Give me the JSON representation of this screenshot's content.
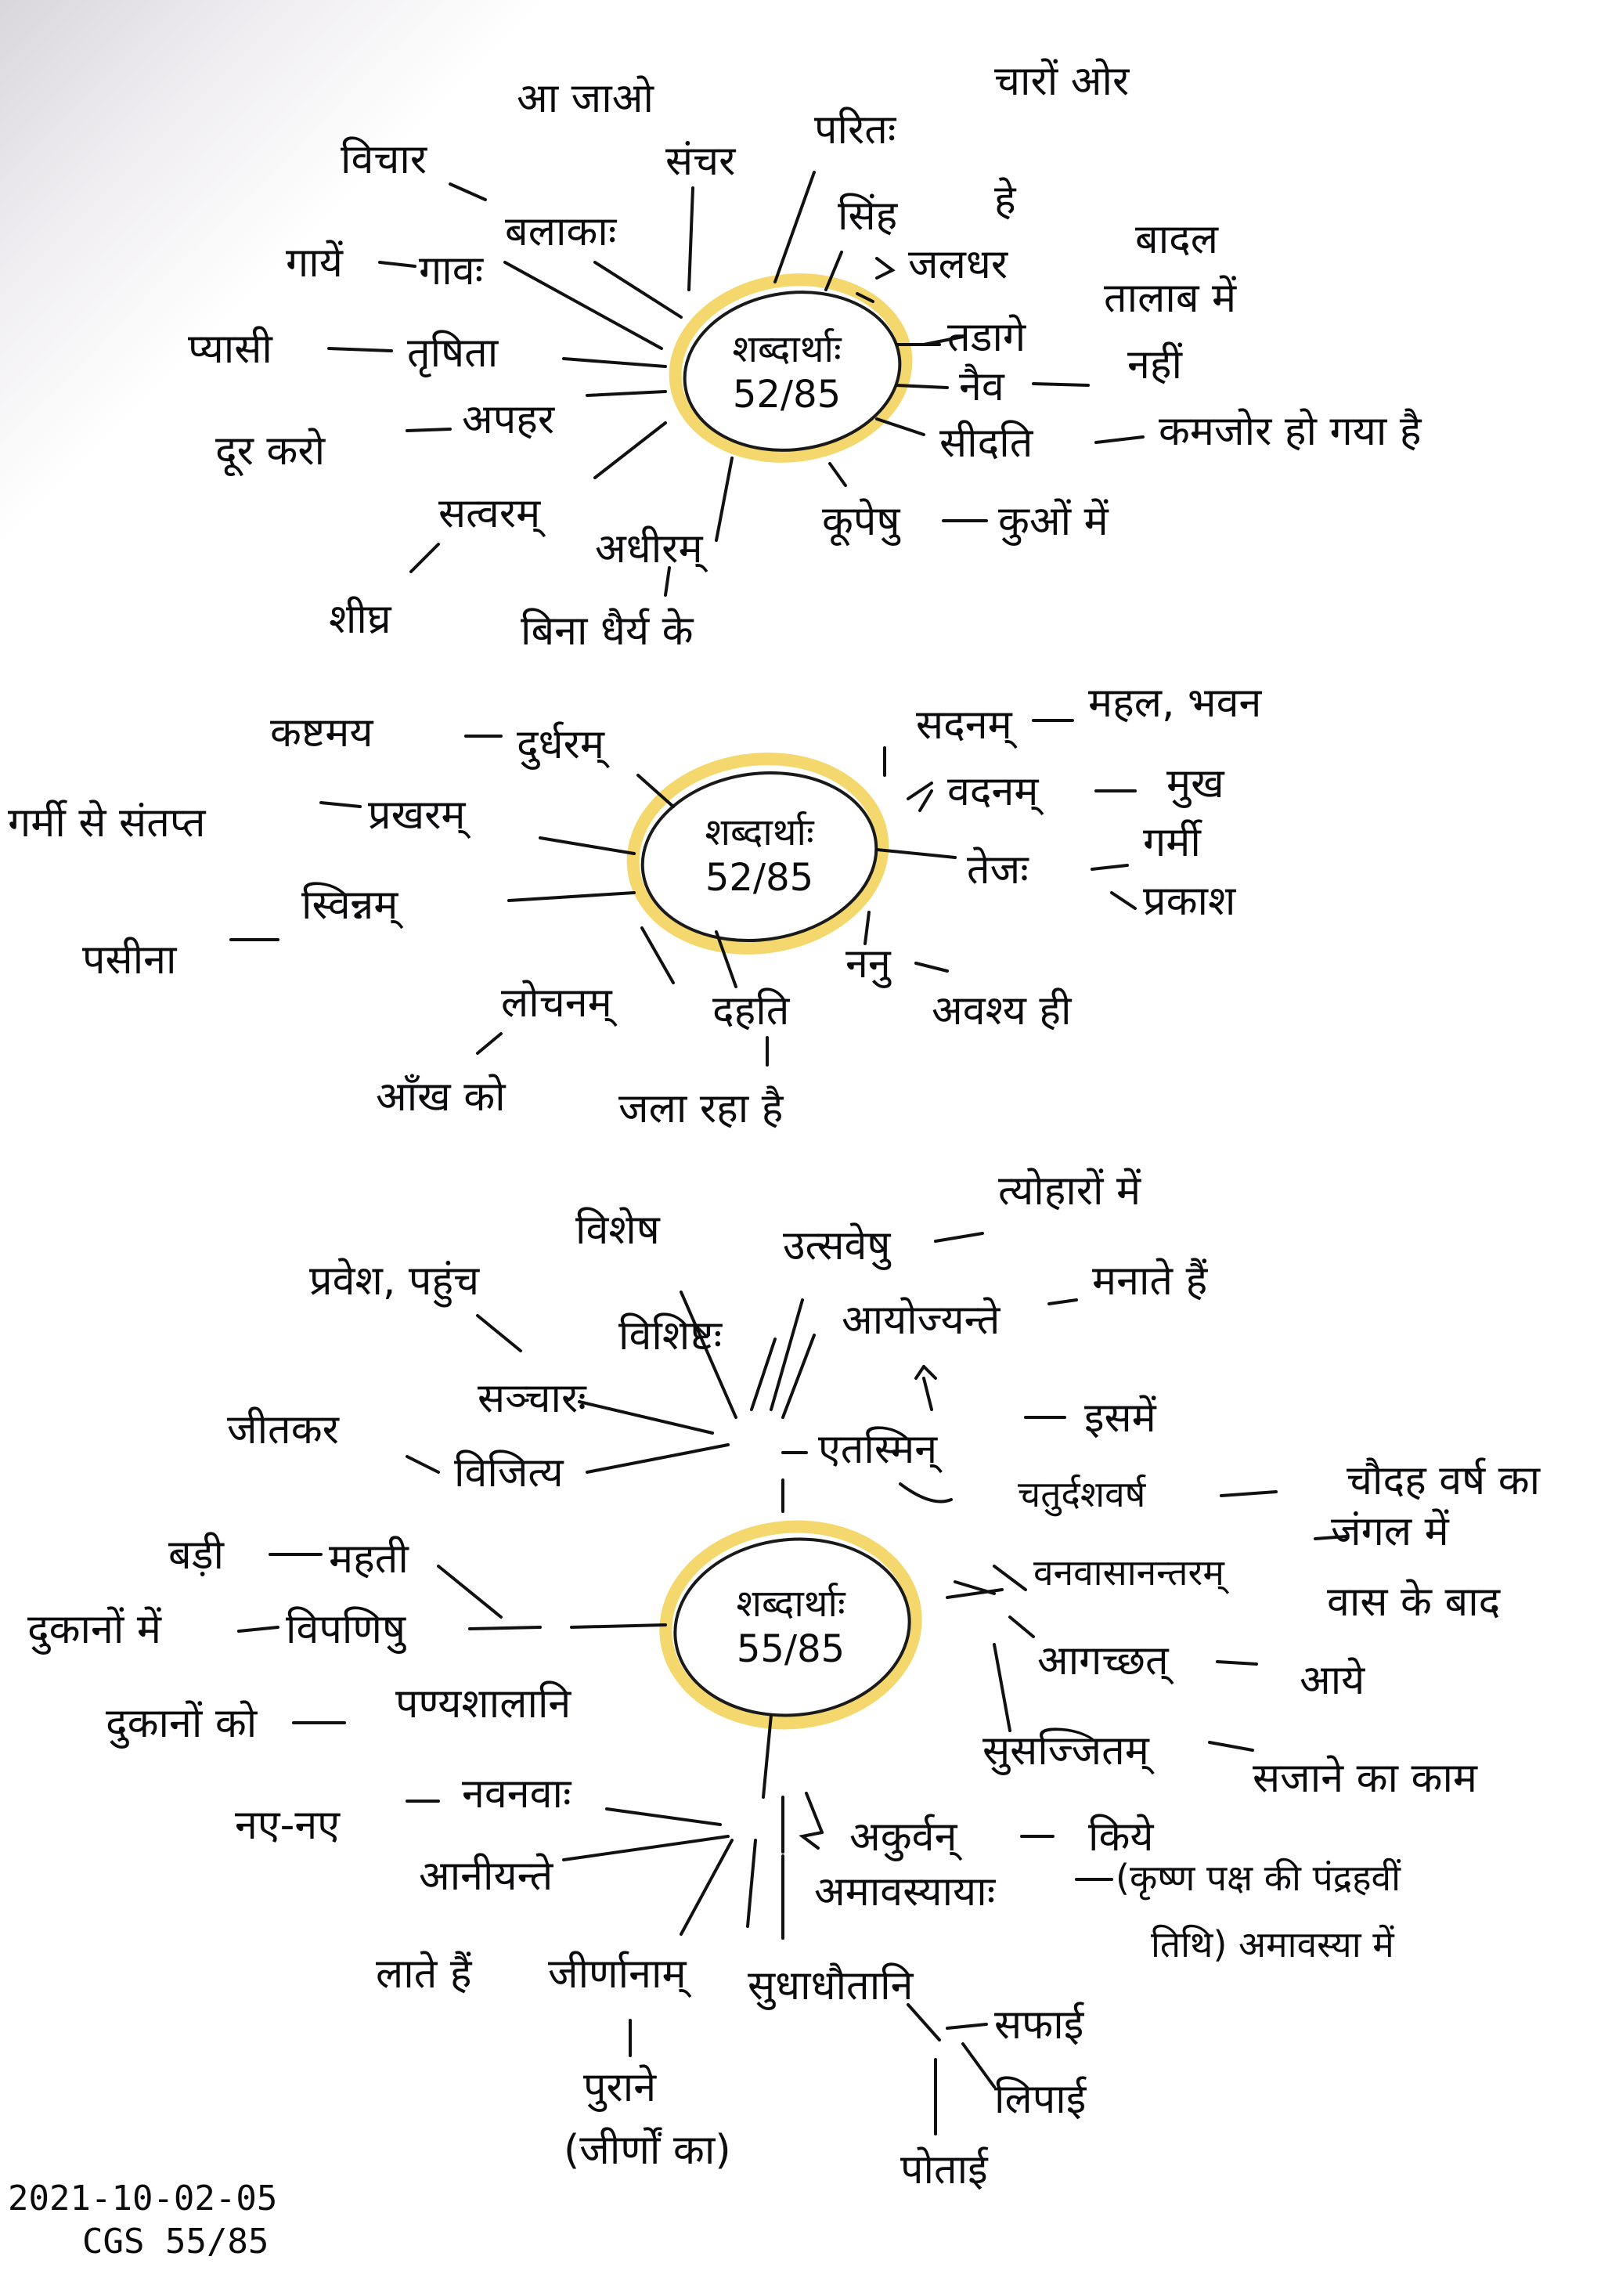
{
  "map1": {
    "center": [
      "शब्दार्थाः",
      "52/85"
    ],
    "labels": {
      "vichar": "विचार",
      "aajao": "आ जाओ",
      "sanchar": "संचर",
      "paritah": "परितः",
      "chaaron_or": "चारों ओर",
      "balaakaah": "बलाकाः",
      "sinh": "सिंह",
      "he": "हे",
      "gaayen": "गायें",
      "gaavah": "गावः",
      "jaladhar": "जलधर",
      "baadal": "बादल",
      "tadaage": "तडागे",
      "taalaab_mein": "तालाब में",
      "pyaasi": "प्यासी",
      "trishita": "तृषिता",
      "naiv": "नैव",
      "nahin": "नहीं",
      "door_karo": "दूर करो",
      "apahar": "अपहर",
      "seedati": "सीदति",
      "kamjor": "कमजोर हो गया है",
      "satvaram": "सत्वरम्",
      "adheeram": "अधीरम्",
      "koopeshu": "कूपेषु",
      "kuon_mein": "कुओं में",
      "sheeghra": "शीघ्र",
      "bina_dhairya": "बिना धैर्य के"
    }
  },
  "map2": {
    "center": [
      "शब्दार्थाः",
      "52/85"
    ],
    "labels": {
      "kashtmay": "कष्टमय",
      "durdharam": "दुर्धरम्",
      "sadanam": "सदनम्",
      "mahal": "महल, भवन",
      "garmi_santapt": "गर्मी से संतप्त",
      "prakharam": "प्रखरम्",
      "vadanam": "वदनम्",
      "mukh": "मुख",
      "tejah": "तेजः",
      "garmi": "गर्मी",
      "prakash": "प्रकाश",
      "paseena": "पसीना",
      "svinnam": "स्विन्नम्",
      "nanu": "ननु",
      "avashya": "अवश्य ही",
      "lochanam": "लोचनम्",
      "dahati": "दहति",
      "aankh_ko": "आँख को",
      "jal_raha": "जला रहा है"
    }
  },
  "map3": {
    "center": [
      "शब्दार्थाः",
      "55/85"
    ],
    "labels": {
      "vishesh": "विशेष",
      "utsaveshu": "उत्सवेषु",
      "tyohaaron": "त्योहारों में",
      "pravesh": "प्रवेश, पहुंच",
      "vishishtah": "विशिष्टः",
      "aayojyante": "आयोज्यन्ते",
      "manaate": "मनाते हैं",
      "sanchaarah": "सञ्चारः",
      "etasmin": "एतस्मिन्",
      "ismein": "इसमें",
      "jeetkar": "जीतकर",
      "vijitya": "विजित्य",
      "chaturdash": "चतुर्दशवर्ष",
      "chaudah": "चौदह वर्ष का",
      "badi": "बड़ी",
      "mahati": "महती",
      "vanavaas": "वनवासानन्तरम्",
      "jangal": "जंगल में",
      "vaas": "वास के बाद",
      "dukaanon_mein": "दुकानों में",
      "vipanishu": "विपणिषु",
      "aagachchhat": "आगच्छत्",
      "aaye": "आये",
      "dukaanon_ko": "दुकानों को",
      "panyashalaa": "पण्यशालानि",
      "susajjitam": "सुसज्जितम्",
      "sajaane": "सजाने का काम",
      "nav_nav": "नए-नए",
      "navanavah": "नवनवाः",
      "akurvan": "अकुर्वन्",
      "kiye": "किये",
      "aaneeyante": "आनीयन्ते",
      "amaavasyaa": "अमावस्यायाः",
      "krishna": "(कृष्ण पक्ष की पंद्रहवीं",
      "tithi": "तिथि) अमावस्या में",
      "laate": "लाते हैं",
      "jeernaanam": "जीर्णानाम्",
      "sudhadhautaani": "सुधाधौतानि",
      "safaai": "सफाई",
      "puraane": "पुराने",
      "lipaai": "लिपाई",
      "jeerna": "(जीर्णों का)",
      "potaai": "पोताई"
    }
  },
  "footer": {
    "date": "2021-10-02-05",
    "code": "CGS 55/85"
  }
}
